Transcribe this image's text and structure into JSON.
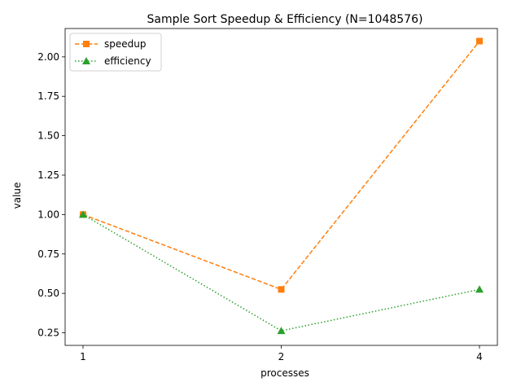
{
  "chart_data": {
    "type": "line",
    "title": "Sample Sort Speedup & Efficiency (N=1048576)",
    "xlabel": "processes",
    "ylabel": "value",
    "x_categories": [
      "1",
      "2",
      "4"
    ],
    "yticks": [
      "0.25",
      "0.50",
      "0.75",
      "1.00",
      "1.25",
      "1.50",
      "1.75",
      "2.00"
    ],
    "ylim": [
      0.17,
      2.18
    ],
    "grid": false,
    "legend_position": "top-left",
    "series": [
      {
        "name": "speedup",
        "values": [
          1.0,
          0.525,
          2.1
        ],
        "color": "#ff7f0e",
        "linestyle": "dashed",
        "marker": "square"
      },
      {
        "name": "efficiency",
        "values": [
          1.0,
          0.2625,
          0.525
        ],
        "color": "#2ca02c",
        "linestyle": "dotted",
        "marker": "triangle"
      }
    ]
  }
}
